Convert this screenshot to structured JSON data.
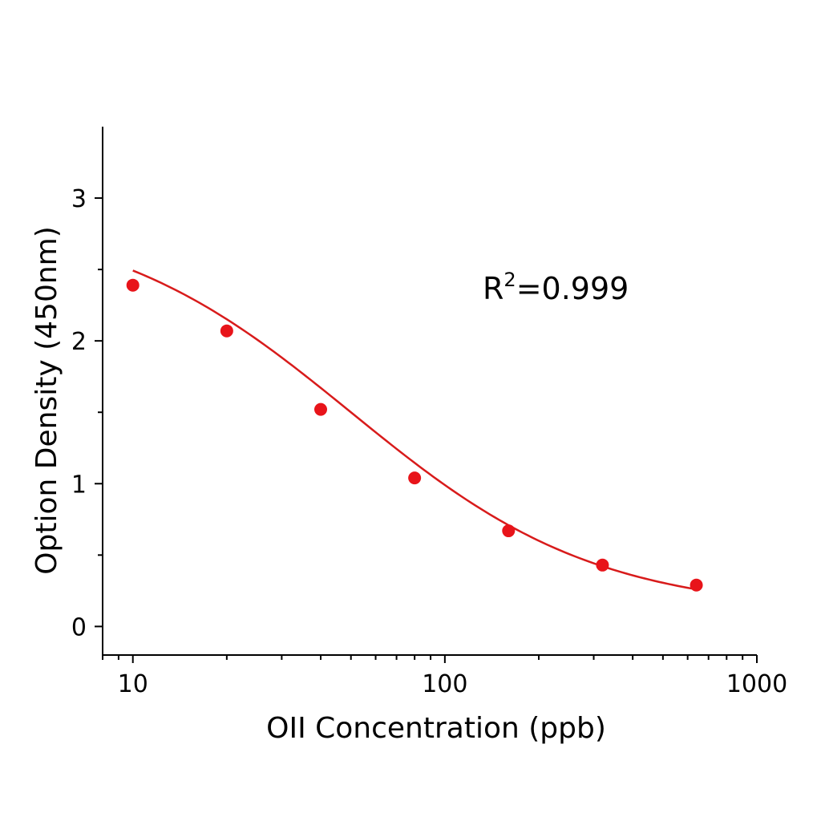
{
  "chart_data": {
    "type": "scatter",
    "title": "",
    "xlabel": "OII Concentration (ppb)",
    "ylabel": "Option Density (450nm)",
    "xscale": "log",
    "xlim": [
      8,
      1000
    ],
    "ylim": [
      -0.2,
      3.5
    ],
    "grid": false,
    "x_ticks": [
      10,
      100,
      1000
    ],
    "x_tick_labels": [
      "10",
      "100",
      "1000"
    ],
    "y_ticks": [
      0,
      1,
      2,
      3
    ],
    "y_tick_labels": [
      "0",
      "1",
      "2",
      "3"
    ],
    "y_minor_ticks": [
      0.5,
      1.5,
      2.5
    ],
    "series": [
      {
        "name": "measured",
        "kind": "points",
        "color": "#e8141a",
        "x": [
          10,
          20,
          40,
          80,
          160,
          320,
          640
        ],
        "y": [
          2.39,
          2.07,
          1.52,
          1.04,
          0.67,
          0.43,
          0.29
        ]
      },
      {
        "name": "fit",
        "kind": "curve",
        "color": "#d81b1b",
        "model": "4PL",
        "params": {
          "top": 2.9,
          "bottom": 0.1,
          "ic50": 50,
          "hill": 1.1
        },
        "x_range": [
          10,
          640
        ]
      }
    ],
    "annotations": [
      {
        "text": "R",
        "superscript": "2",
        "suffix": "=0.999",
        "position": "upper-right"
      }
    ]
  }
}
